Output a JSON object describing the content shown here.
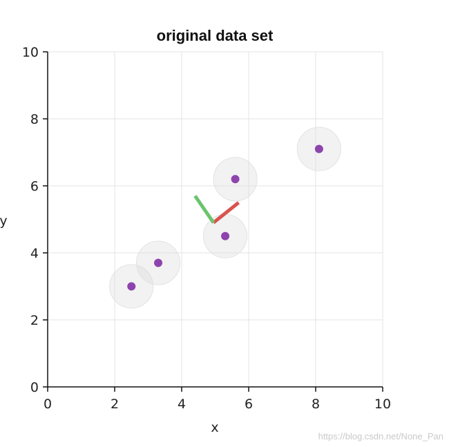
{
  "chart_data": {
    "type": "scatter",
    "title": "original data set",
    "xlabel": "x",
    "ylabel": "y",
    "xlim": [
      0,
      10
    ],
    "ylim": [
      0,
      10
    ],
    "xticks": [
      0,
      2,
      4,
      6,
      8,
      10
    ],
    "yticks": [
      0,
      2,
      4,
      6,
      8,
      10
    ],
    "grid": true,
    "points": [
      {
        "x": 2.5,
        "y": 3.0
      },
      {
        "x": 3.3,
        "y": 3.7
      },
      {
        "x": 5.3,
        "y": 4.5
      },
      {
        "x": 5.6,
        "y": 6.2
      },
      {
        "x": 8.1,
        "y": 7.1
      }
    ],
    "point_color": "#8e44ad",
    "halo_color": "#d9d9d9",
    "halo_radius": 0.65,
    "principal_axes": [
      {
        "from": [
          4.95,
          4.9
        ],
        "to": [
          5.7,
          5.5
        ],
        "color": "#d9534f"
      },
      {
        "from": [
          4.95,
          4.9
        ],
        "to": [
          4.4,
          5.7
        ],
        "color": "#6cc46c"
      }
    ]
  },
  "watermark": "https://blog.csdn.net/None_Pan"
}
